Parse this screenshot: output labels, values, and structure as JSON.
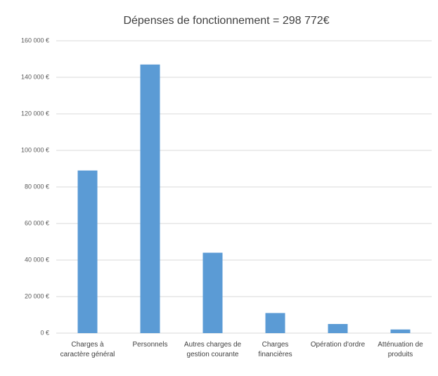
{
  "chart_data": {
    "type": "bar",
    "title": "Dépenses de fonctionnement = 298 772€",
    "categories": [
      "Charges à caractère général",
      "Personnels",
      "Autres charges de gestion courante",
      "Charges financières",
      "Opération d'ordre",
      "Atténuation de produits"
    ],
    "values": [
      89000,
      147000,
      44000,
      11000,
      5000,
      2000
    ],
    "color": "#5b9bd5",
    "ylim": [
      0,
      160000
    ],
    "yticks": [
      {
        "value": 0,
        "label": "0 €"
      },
      {
        "value": 20000,
        "label": "20 000 €"
      },
      {
        "value": 40000,
        "label": "40 000 €"
      },
      {
        "value": 60000,
        "label": "60 000 €"
      },
      {
        "value": 80000,
        "label": "80 000 €"
      },
      {
        "value": 100000,
        "label": "100 000 €"
      },
      {
        "value": 120000,
        "label": "120 000 €"
      },
      {
        "value": 140000,
        "label": "140 000 €"
      },
      {
        "value": 160000,
        "label": "160 000 €"
      }
    ],
    "grid": true
  }
}
